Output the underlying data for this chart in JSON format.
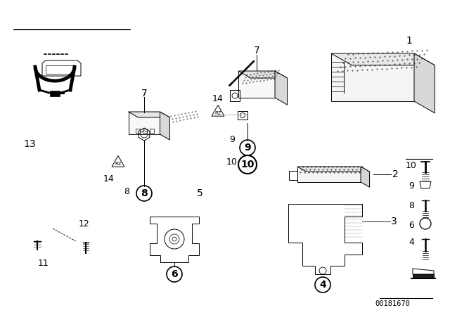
{
  "background_color": "#ffffff",
  "watermark": "00181670",
  "header_line": [
    20,
    42,
    185,
    42
  ]
}
